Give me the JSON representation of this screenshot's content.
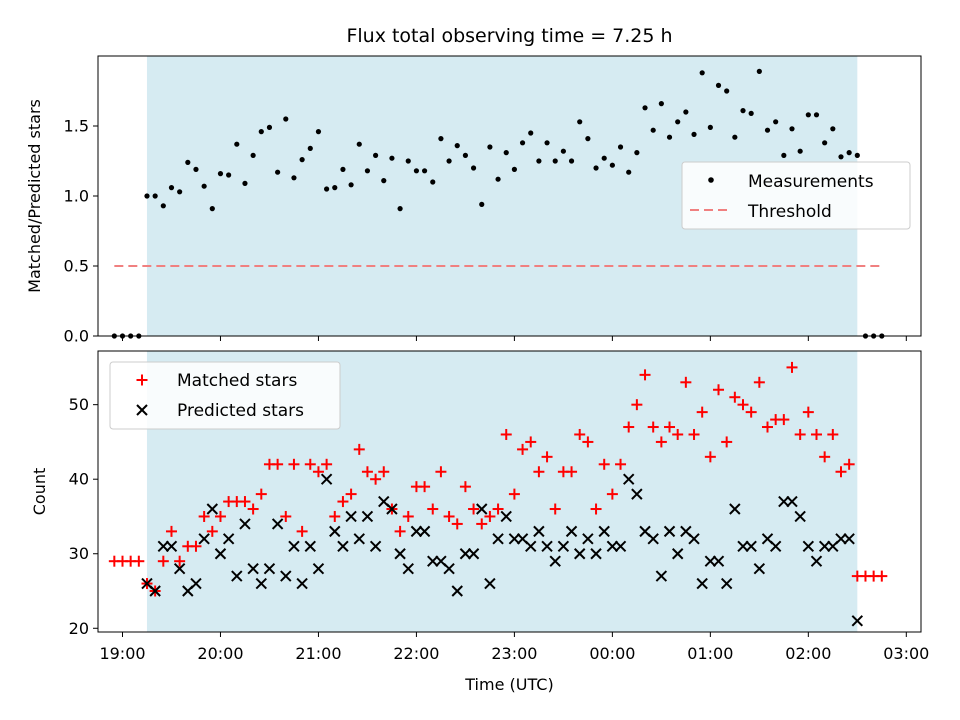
{
  "chart_data": [
    {
      "type": "scatter",
      "title": "Flux total observing time = 7.25 h",
      "xlabel": "",
      "ylabel": "Matched/Predicted stars",
      "xlim": [
        "18:45",
        "03:09"
      ],
      "ylim": [
        0,
        2.0
      ],
      "yticks": [
        0.0,
        0.5,
        1.0,
        1.5
      ],
      "ytick_labels": [
        "0.0",
        "0.5",
        "1.0",
        "1.5"
      ],
      "grid": false,
      "legend_position": "center-right",
      "shaded_interval": [
        "19:15",
        "02:30"
      ],
      "shade_color": "#add8e6",
      "series": [
        {
          "name": "Measurements",
          "marker": "dot",
          "color": "#000000",
          "x": [
            "18:55",
            "19:00",
            "19:05",
            "19:10",
            "19:15",
            "19:20",
            "19:25",
            "19:30",
            "19:35",
            "19:40",
            "19:45",
            "19:50",
            "19:55",
            "20:00",
            "20:05",
            "20:10",
            "20:15",
            "20:20",
            "20:25",
            "20:30",
            "20:35",
            "20:40",
            "20:45",
            "20:50",
            "20:55",
            "21:00",
            "21:05",
            "21:10",
            "21:15",
            "21:20",
            "21:25",
            "21:30",
            "21:35",
            "21:40",
            "21:45",
            "21:50",
            "21:55",
            "22:00",
            "22:05",
            "22:10",
            "22:15",
            "22:20",
            "22:25",
            "22:30",
            "22:35",
            "22:40",
            "22:45",
            "22:50",
            "22:55",
            "23:00",
            "23:05",
            "23:10",
            "23:15",
            "23:20",
            "23:25",
            "23:30",
            "23:35",
            "23:40",
            "23:45",
            "23:50",
            "23:55",
            "00:00",
            "00:05",
            "00:10",
            "00:15",
            "00:20",
            "00:25",
            "00:30",
            "00:35",
            "00:40",
            "00:45",
            "00:50",
            "00:55",
            "01:00",
            "01:05",
            "01:10",
            "01:15",
            "01:20",
            "01:25",
            "01:30",
            "01:35",
            "01:40",
            "01:45",
            "01:50",
            "01:55",
            "02:00",
            "02:05",
            "02:10",
            "02:15",
            "02:20",
            "02:25",
            "02:30",
            "02:35",
            "02:40",
            "02:45"
          ],
          "y": [
            0,
            0,
            0,
            0,
            1.0,
            1.0,
            0.93,
            1.06,
            1.03,
            1.24,
            1.19,
            1.07,
            0.91,
            1.16,
            1.15,
            1.37,
            1.09,
            1.29,
            1.46,
            1.49,
            1.17,
            1.55,
            1.13,
            1.26,
            1.34,
            1.46,
            1.05,
            1.06,
            1.19,
            1.08,
            1.37,
            1.18,
            1.29,
            1.11,
            1.27,
            0.91,
            1.25,
            1.18,
            1.18,
            1.1,
            1.41,
            1.25,
            1.36,
            1.29,
            1.2,
            0.94,
            1.35,
            1.12,
            1.31,
            1.19,
            1.38,
            1.45,
            1.25,
            1.38,
            1.25,
            1.32,
            1.25,
            1.53,
            1.41,
            1.2,
            1.27,
            1.22,
            1.35,
            1.17,
            1.31,
            1.63,
            1.47,
            1.66,
            1.42,
            1.53,
            1.6,
            1.44,
            1.88,
            1.49,
            1.79,
            1.75,
            1.42,
            1.61,
            1.59,
            1.89,
            1.47,
            1.53,
            1.29,
            1.48,
            1.32,
            1.58,
            1.58,
            1.38,
            1.48,
            1.28,
            1.31,
            1.29,
            0,
            0,
            0
          ]
        },
        {
          "name": "Threshold",
          "style": "dashed-line",
          "color": "#f08080",
          "x": [
            "18:55",
            "02:45"
          ],
          "y": [
            0.5,
            0.5
          ]
        }
      ]
    },
    {
      "type": "scatter",
      "title": "",
      "xlabel": "Time (UTC)",
      "ylabel": "Count",
      "xlim": [
        "18:45",
        "03:09"
      ],
      "ylim": [
        19.5,
        57.2
      ],
      "yticks": [
        20,
        30,
        40,
        50
      ],
      "ytick_labels": [
        "20",
        "30",
        "40",
        "50"
      ],
      "xticks": [
        "19:00",
        "20:00",
        "21:00",
        "22:00",
        "23:00",
        "00:00",
        "01:00",
        "02:00",
        "03:00"
      ],
      "grid": false,
      "legend_position": "top-left",
      "shaded_interval": [
        "19:15",
        "02:30"
      ],
      "shade_color": "#add8e6",
      "series": [
        {
          "name": "Matched stars",
          "marker": "plus",
          "color": "#ff0000",
          "x": [
            "18:55",
            "19:00",
            "19:05",
            "19:10",
            "19:15",
            "19:20",
            "19:25",
            "19:30",
            "19:35",
            "19:40",
            "19:45",
            "19:50",
            "19:55",
            "20:00",
            "20:05",
            "20:10",
            "20:15",
            "20:20",
            "20:25",
            "20:30",
            "20:35",
            "20:40",
            "20:45",
            "20:50",
            "20:55",
            "21:00",
            "21:05",
            "21:10",
            "21:15",
            "21:20",
            "21:25",
            "21:30",
            "21:35",
            "21:40",
            "21:45",
            "21:50",
            "21:55",
            "22:00",
            "22:05",
            "22:10",
            "22:15",
            "22:20",
            "22:25",
            "22:30",
            "22:35",
            "22:40",
            "22:45",
            "22:50",
            "22:55",
            "23:00",
            "23:05",
            "23:10",
            "23:15",
            "23:20",
            "23:25",
            "23:30",
            "23:35",
            "23:40",
            "23:45",
            "23:50",
            "23:55",
            "00:00",
            "00:05",
            "00:10",
            "00:15",
            "00:20",
            "00:25",
            "00:30",
            "00:35",
            "00:40",
            "00:45",
            "00:50",
            "00:55",
            "01:00",
            "01:05",
            "01:10",
            "01:15",
            "01:20",
            "01:25",
            "01:30",
            "01:35",
            "01:40",
            "01:45",
            "01:50",
            "01:55",
            "02:00",
            "02:05",
            "02:10",
            "02:15",
            "02:20",
            "02:25",
            "02:30",
            "02:35",
            "02:40",
            "02:45"
          ],
          "y": [
            29,
            29,
            29,
            29,
            26,
            25,
            29,
            33,
            29,
            31,
            31,
            35,
            33,
            35,
            37,
            37,
            37,
            36,
            38,
            42,
            42,
            35,
            42,
            33,
            42,
            41,
            42,
            35,
            37,
            38,
            44,
            41,
            40,
            41,
            36,
            33,
            35,
            39,
            39,
            36,
            41,
            35,
            34,
            39,
            36,
            34,
            35,
            36,
            46,
            38,
            44,
            45,
            41,
            43,
            36,
            41,
            41,
            46,
            45,
            36,
            42,
            38,
            42,
            47,
            50,
            54,
            47,
            45,
            47,
            46,
            53,
            46,
            49,
            43,
            52,
            45,
            51,
            50,
            49,
            53,
            47,
            48,
            48,
            55,
            46,
            49,
            46,
            43,
            46,
            41,
            42,
            27,
            27,
            27,
            27
          ]
        },
        {
          "name": "Predicted stars",
          "marker": "x",
          "color": "#000000",
          "x": [
            "19:15",
            "19:20",
            "19:25",
            "19:30",
            "19:35",
            "19:40",
            "19:45",
            "19:50",
            "19:55",
            "20:00",
            "20:05",
            "20:10",
            "20:15",
            "20:20",
            "20:25",
            "20:30",
            "20:35",
            "20:40",
            "20:45",
            "20:50",
            "20:55",
            "21:00",
            "21:05",
            "21:10",
            "21:15",
            "21:20",
            "21:25",
            "21:30",
            "21:35",
            "21:40",
            "21:45",
            "21:50",
            "21:55",
            "22:00",
            "22:05",
            "22:10",
            "22:15",
            "22:20",
            "22:25",
            "22:30",
            "22:35",
            "22:40",
            "22:45",
            "22:50",
            "22:55",
            "23:00",
            "23:05",
            "23:10",
            "23:15",
            "23:20",
            "23:25",
            "23:30",
            "23:35",
            "23:40",
            "23:45",
            "23:50",
            "23:55",
            "00:00",
            "00:05",
            "00:10",
            "00:15",
            "00:20",
            "00:25",
            "00:30",
            "00:35",
            "00:40",
            "00:45",
            "00:50",
            "00:55",
            "01:00",
            "01:05",
            "01:10",
            "01:15",
            "01:20",
            "01:25",
            "01:30",
            "01:35",
            "01:40",
            "01:45",
            "01:50",
            "01:55",
            "02:00",
            "02:05",
            "02:10",
            "02:15",
            "02:20",
            "02:25",
            "02:30"
          ],
          "y": [
            26,
            25,
            31,
            31,
            28,
            25,
            26,
            32,
            36,
            30,
            32,
            27,
            34,
            28,
            26,
            28,
            34,
            27,
            31,
            26,
            31,
            28,
            40,
            33,
            31,
            35,
            32,
            35,
            31,
            37,
            36,
            30,
            28,
            33,
            33,
            29,
            29,
            28,
            25,
            30,
            30,
            36,
            26,
            32,
            35,
            32,
            32,
            31,
            33,
            31,
            29,
            31,
            33,
            30,
            32,
            30,
            33,
            31,
            31,
            40,
            38,
            33,
            32,
            27,
            33,
            30,
            33,
            32,
            26,
            29,
            29,
            26,
            36,
            31,
            31,
            28,
            32,
            31,
            37,
            37,
            35,
            31,
            29,
            31,
            31,
            32,
            32,
            21
          ]
        }
      ]
    }
  ]
}
